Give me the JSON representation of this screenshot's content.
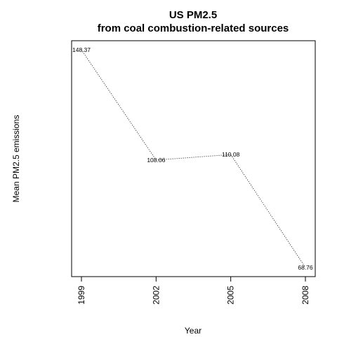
{
  "chart_data": {
    "type": "line",
    "title": "US PM2.5",
    "subtitle": "from coal combustion-related sources",
    "xlabel": "Year",
    "ylabel": "Mean PM2.5 emissions",
    "x": [
      "1999",
      "2002",
      "2005",
      "2008"
    ],
    "values": [
      148.37,
      108.06,
      110.08,
      68.76
    ],
    "data_labels": [
      "148.37",
      "108.06",
      "110.08",
      "68.76"
    ],
    "ylim": [
      68.76,
      148.37
    ],
    "line_style": "dotted",
    "y_axis_ticks_shown": false,
    "grid": false,
    "legend": "none"
  }
}
